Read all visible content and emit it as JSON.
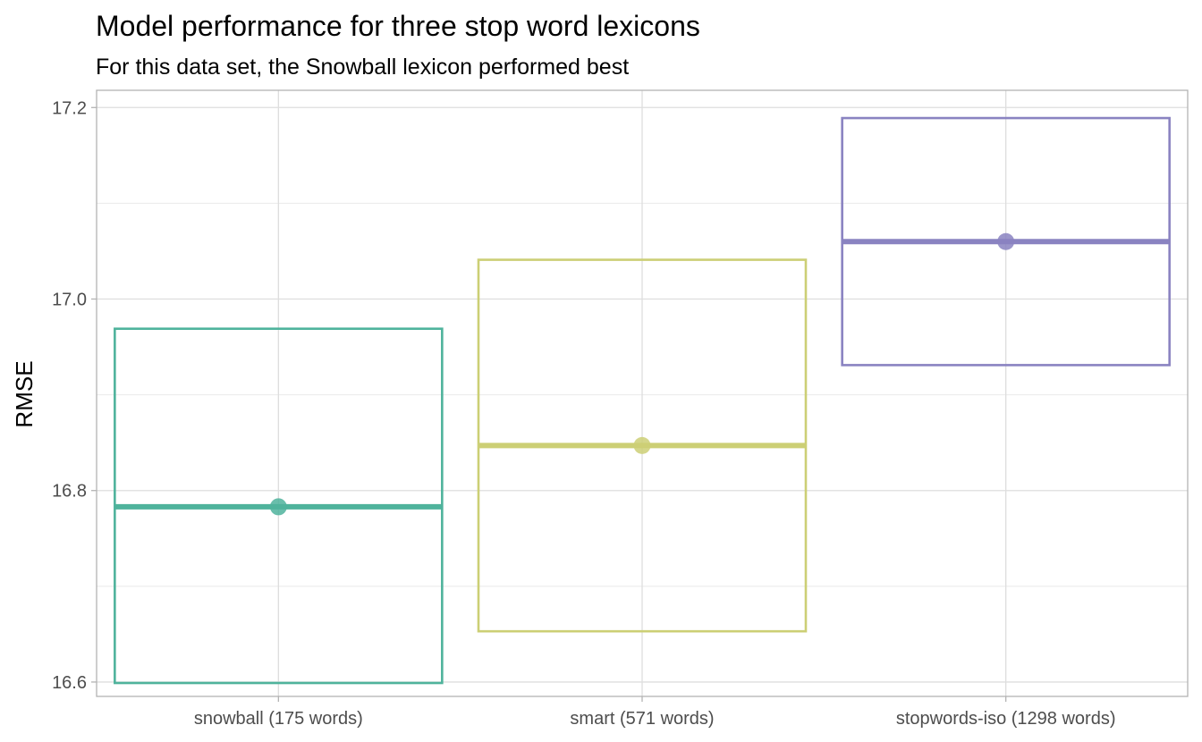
{
  "chart_data": {
    "type": "box",
    "title": "Model performance for three stop word lexicons",
    "subtitle": "For this data set, the Snowball lexicon performed best",
    "xlabel": "",
    "ylabel": "RMSE",
    "ylim": [
      16.585,
      17.218
    ],
    "y_ticks": [
      16.6,
      16.8,
      17.0,
      17.2
    ],
    "y_tick_labels": [
      "16.6",
      "16.8",
      "17.0",
      "17.2"
    ],
    "y_minor_ticks": [
      16.7,
      16.9,
      17.1
    ],
    "grid": true,
    "legend": "none",
    "categories": [
      "snowball (175 words)",
      "smart (571 words)",
      "stopwords-iso (1298 words)"
    ],
    "series": [
      {
        "category": "snowball (175 words)",
        "color": "#4fb39c",
        "lower": 16.599,
        "upper": 16.969,
        "mean": 16.783
      },
      {
        "category": "smart (571 words)",
        "color": "#cccf75",
        "lower": 16.653,
        "upper": 17.041,
        "mean": 16.847
      },
      {
        "category": "stopwords-iso (1298 words)",
        "color": "#8a83c1",
        "lower": 16.931,
        "upper": 17.189,
        "mean": 17.06
      }
    ]
  }
}
